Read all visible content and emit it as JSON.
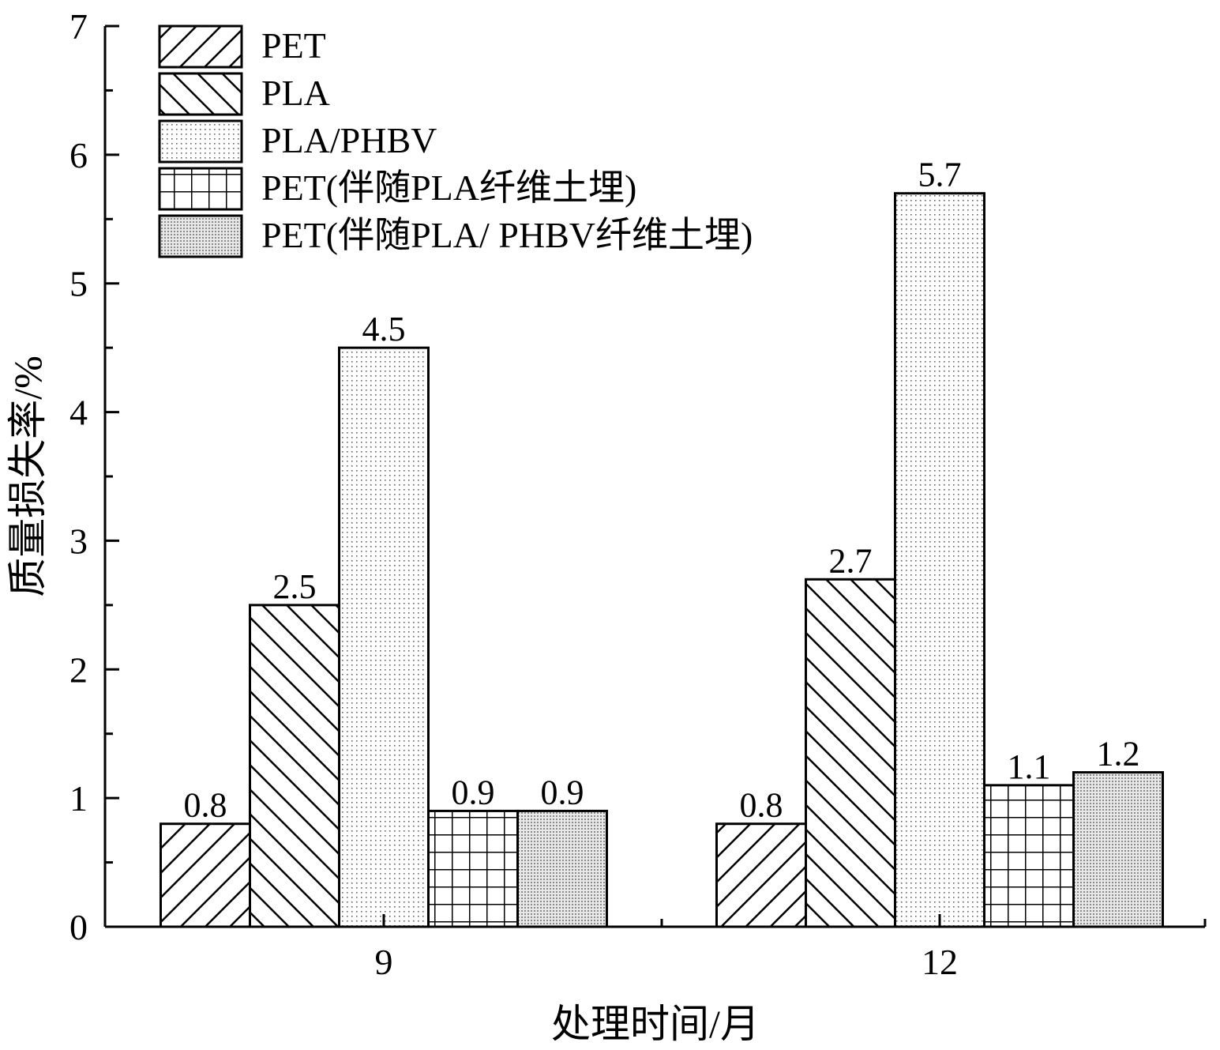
{
  "chart_data": {
    "type": "bar",
    "categories": [
      "9",
      "12"
    ],
    "series": [
      {
        "name": "PET",
        "values": [
          0.8,
          0.8
        ],
        "pattern": "diag-up"
      },
      {
        "name": "PLA",
        "values": [
          2.5,
          2.7
        ],
        "pattern": "diag-down"
      },
      {
        "name": "PLA/PHBV",
        "values": [
          4.5,
          5.7
        ],
        "pattern": "dots-sparse"
      },
      {
        "name": "PET(伴随PLA纤维土埋)",
        "values": [
          0.9,
          1.1
        ],
        "pattern": "grid"
      },
      {
        "name": "PET(伴随PLA/ PHBV纤维土埋)",
        "values": [
          0.9,
          1.2
        ],
        "pattern": "dots-dense"
      }
    ],
    "data_labels": [
      [
        "0.8",
        "0.8"
      ],
      [
        "2.5",
        "2.7"
      ],
      [
        "4.5",
        "5.7"
      ],
      [
        "0.9",
        "1.1"
      ],
      [
        "0.9",
        "1.2"
      ]
    ],
    "xlabel": "处理时间/月",
    "ylabel": "质量损失率/%",
    "ylim": [
      0,
      7
    ],
    "yticks": [
      "0",
      "1",
      "2",
      "3",
      "4",
      "5",
      "6",
      "7"
    ],
    "grid": false,
    "legend_position": "top-left",
    "colors": {
      "stroke": "#000000",
      "fill": "#ffffff",
      "dot": "#555555"
    }
  }
}
